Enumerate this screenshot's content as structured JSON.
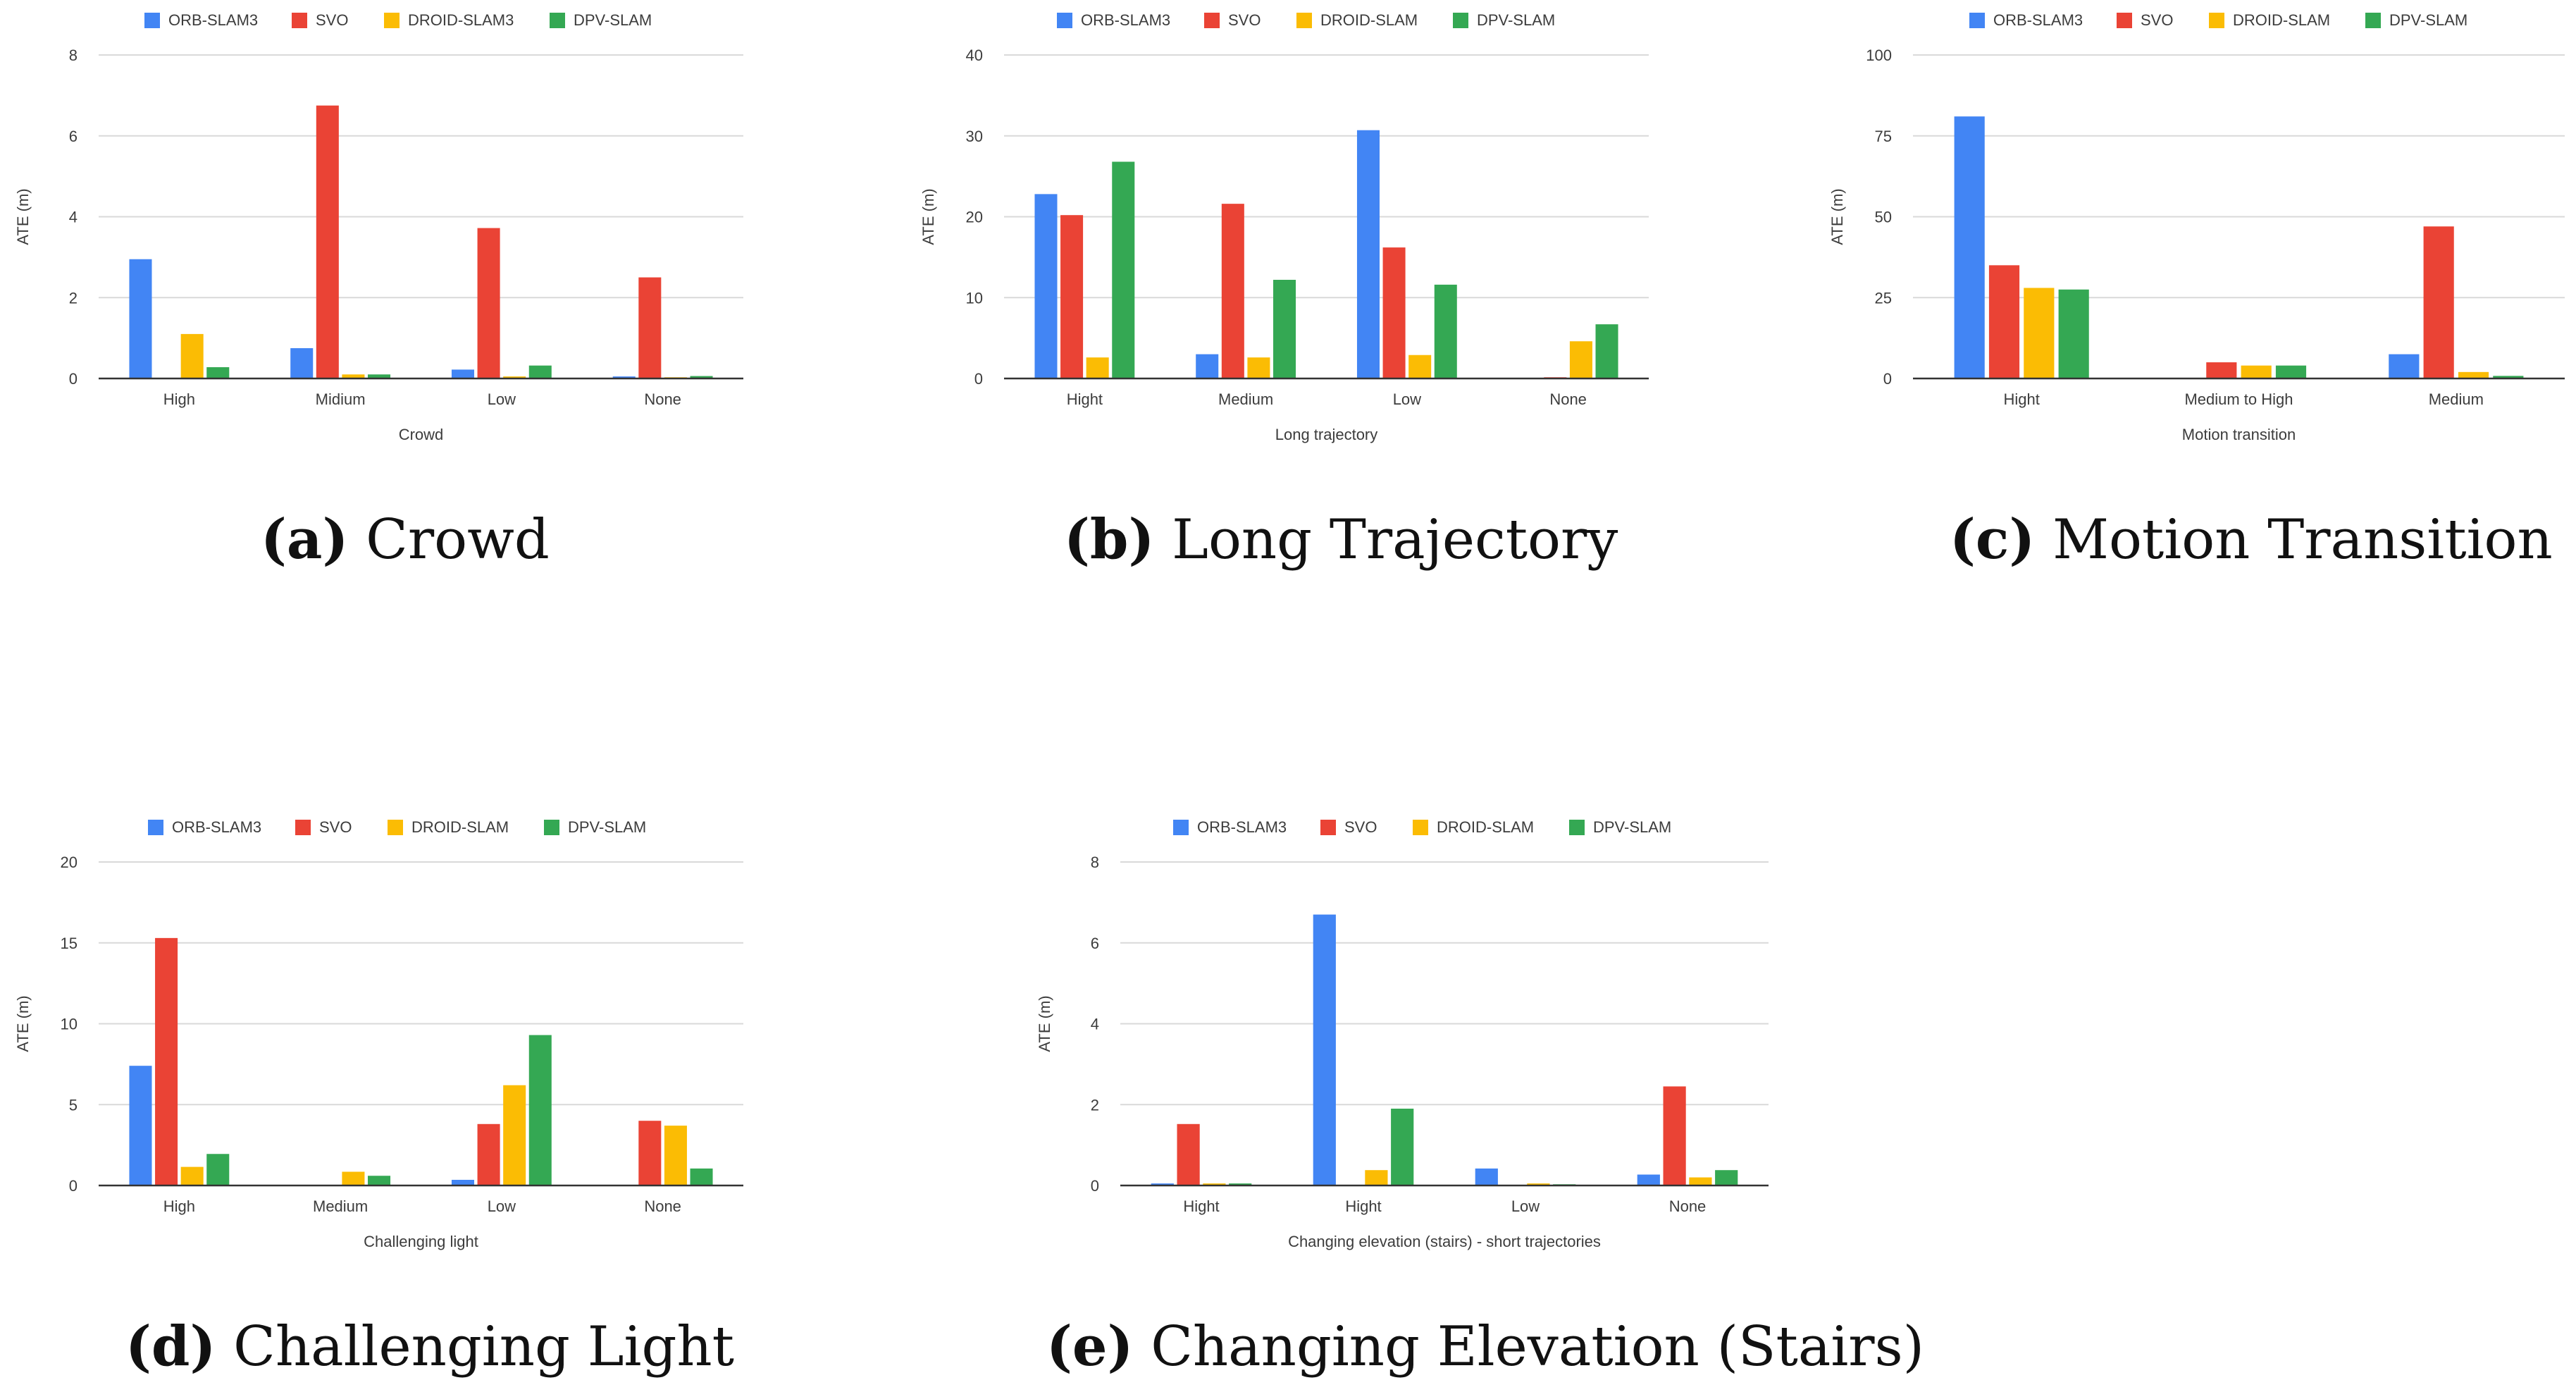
{
  "colors": {
    "ORB-SLAM3": "#4285F4",
    "SVO": "#EA4335",
    "DROID-SLAM3": "#FBBC04",
    "DROID-SLAM": "#FBBC04",
    "DPV-SLAM": "#34A853",
    "grid": "#d9d9d9",
    "axis": "#333333"
  },
  "chart_data": [
    {
      "type": "bar",
      "id": "a",
      "caption_letter": "(a)",
      "caption_text": "Crowd",
      "legend": [
        "ORB-SLAM3",
        "SVO",
        "DROID-SLAM3",
        "DPV-SLAM"
      ],
      "xlabel": "Crowd",
      "ylabel": "ATE (m)",
      "ylim": [
        0,
        8
      ],
      "yticks": [
        "0",
        "2",
        "4",
        "6",
        "8"
      ],
      "categories": [
        "High",
        "Midium",
        "Low",
        "None"
      ],
      "series": [
        {
          "name": "ORB-SLAM3",
          "values": [
            2.95,
            0.75,
            0.22,
            0.05
          ]
        },
        {
          "name": "SVO",
          "values": [
            0,
            6.75,
            3.72,
            2.5
          ]
        },
        {
          "name": "DROID-SLAM3",
          "values": [
            1.1,
            0.1,
            0.05,
            0.03
          ]
        },
        {
          "name": "DPV-SLAM",
          "values": [
            0.28,
            0.1,
            0.32,
            0.06
          ]
        }
      ]
    },
    {
      "type": "bar",
      "id": "b",
      "caption_letter": "(b)",
      "caption_text": "Long Trajectory",
      "legend": [
        "ORB-SLAM3",
        "SVO",
        "DROID-SLAM",
        "DPV-SLAM"
      ],
      "xlabel": "Long trajectory",
      "ylabel": "ATE (m)",
      "ylim": [
        0,
        40
      ],
      "yticks": [
        "0",
        "10",
        "20",
        "30",
        "40"
      ],
      "categories": [
        "Hight",
        "Medium",
        "Low",
        "None"
      ],
      "series": [
        {
          "name": "ORB-SLAM3",
          "values": [
            22.8,
            3.0,
            30.7,
            0
          ]
        },
        {
          "name": "SVO",
          "values": [
            20.2,
            21.6,
            16.2,
            0.15
          ]
        },
        {
          "name": "DROID-SLAM",
          "values": [
            2.6,
            2.6,
            2.9,
            4.6
          ]
        },
        {
          "name": "DPV-SLAM",
          "values": [
            26.8,
            12.2,
            11.6,
            6.7
          ]
        }
      ]
    },
    {
      "type": "bar",
      "id": "c",
      "caption_letter": "(c)",
      "caption_text": "Motion Transition",
      "legend": [
        "ORB-SLAM3",
        "SVO",
        "DROID-SLAM",
        "DPV-SLAM"
      ],
      "xlabel": "Motion transition",
      "ylabel": "ATE (m)",
      "ylim": [
        0,
        100
      ],
      "yticks": [
        "0",
        "25",
        "50",
        "75",
        "100"
      ],
      "categories": [
        "Hight",
        "Medium to High",
        "Medium"
      ],
      "series": [
        {
          "name": "ORB-SLAM3",
          "values": [
            81,
            0,
            7.5
          ]
        },
        {
          "name": "SVO",
          "values": [
            35,
            5,
            47
          ]
        },
        {
          "name": "DROID-SLAM",
          "values": [
            28,
            4,
            2
          ]
        },
        {
          "name": "DPV-SLAM",
          "values": [
            27.5,
            4,
            0.8
          ]
        }
      ]
    },
    {
      "type": "bar",
      "id": "d",
      "caption_letter": "(d)",
      "caption_text": "Challenging Light",
      "legend": [
        "ORB-SLAM3",
        "SVO",
        "DROID-SLAM",
        "DPV-SLAM"
      ],
      "xlabel": "Challenging light",
      "ylabel": "ATE (m)",
      "ylim": [
        0,
        20
      ],
      "yticks": [
        "0",
        "5",
        "10",
        "15",
        "20"
      ],
      "categories": [
        "High",
        "Medium",
        "Low",
        "None"
      ],
      "series": [
        {
          "name": "ORB-SLAM3",
          "values": [
            7.4,
            0,
            0.35,
            0
          ]
        },
        {
          "name": "SVO",
          "values": [
            15.3,
            0,
            3.8,
            4.0
          ]
        },
        {
          "name": "DROID-SLAM",
          "values": [
            1.15,
            0.85,
            6.2,
            3.7
          ]
        },
        {
          "name": "DPV-SLAM",
          "values": [
            1.95,
            0.6,
            9.3,
            1.05
          ]
        }
      ]
    },
    {
      "type": "bar",
      "id": "e",
      "caption_letter": "(e)",
      "caption_text": "Changing Elevation (Stairs)",
      "legend": [
        "ORB-SLAM3",
        "SVO",
        "DROID-SLAM",
        "DPV-SLAM"
      ],
      "xlabel": "Changing elevation (stairs) - short trajectories",
      "ylabel": "ATE (m)",
      "ylim": [
        0,
        8
      ],
      "yticks": [
        "0",
        "2",
        "4",
        "6",
        "8"
      ],
      "categories": [
        "Hight",
        "Hight",
        "Low",
        "None"
      ],
      "series": [
        {
          "name": "ORB-SLAM3",
          "values": [
            0.05,
            6.7,
            0.42,
            0.27
          ]
        },
        {
          "name": "SVO",
          "values": [
            1.52,
            0,
            0,
            2.45
          ]
        },
        {
          "name": "DROID-SLAM",
          "values": [
            0.05,
            0.38,
            0.05,
            0.2
          ]
        },
        {
          "name": "DPV-SLAM",
          "values": [
            0.05,
            1.9,
            0.03,
            0.38
          ]
        }
      ]
    }
  ]
}
